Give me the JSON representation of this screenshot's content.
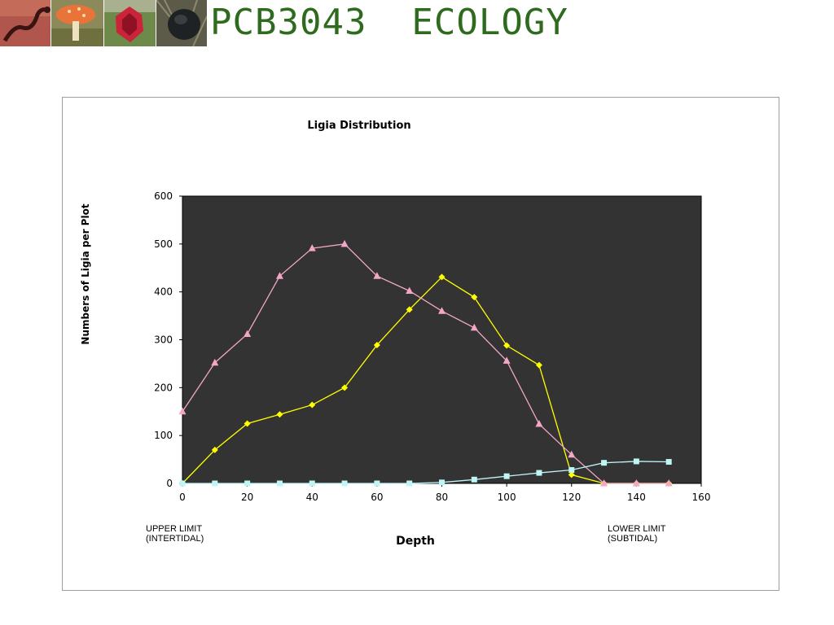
{
  "header": {
    "title": "PCB3043  ECOLOGY",
    "thumbnails": [
      "salamander-photo",
      "mushroom-photo",
      "red-flower-photo",
      "dark-fungus-photo"
    ]
  },
  "notes": {
    "upper": [
      "UPPER LIMIT",
      "(INTERTIDAL)"
    ],
    "lower": [
      "LOWER LIMIT",
      "(SUBTIDAL)"
    ]
  },
  "chart_data": {
    "type": "line",
    "title": "Ligia Distribution",
    "xlabel": "Depth",
    "ylabel": "Numbers of Ligia per Plot",
    "xlim": [
      0,
      160
    ],
    "ylim": [
      0,
      600
    ],
    "xticks": [
      0,
      20,
      40,
      60,
      80,
      100,
      120,
      140,
      160
    ],
    "yticks": [
      0,
      100,
      200,
      300,
      400,
      500,
      600
    ],
    "plot_background": "#333333",
    "grid": false,
    "legend": "none",
    "x": [
      0,
      10,
      20,
      30,
      40,
      50,
      60,
      70,
      80,
      90,
      100,
      110,
      120,
      130,
      140,
      150
    ],
    "series": [
      {
        "color": "#ffff00",
        "marker": "diamond",
        "values": [
          0,
          70,
          125,
          144,
          164,
          200,
          289,
          363,
          431,
          389,
          288,
          247,
          18,
          0,
          0,
          0
        ]
      },
      {
        "color": "#f4a6c6",
        "marker": "triangle",
        "values": [
          150,
          252,
          312,
          433,
          491,
          500,
          433,
          402,
          360,
          325,
          256,
          124,
          60,
          0,
          0,
          0
        ]
      },
      {
        "color": "#bff5f5",
        "marker": "square",
        "values": [
          0,
          0,
          0,
          0,
          0,
          0,
          0,
          0,
          2,
          8,
          15,
          22,
          28,
          43,
          46,
          45
        ]
      }
    ]
  }
}
